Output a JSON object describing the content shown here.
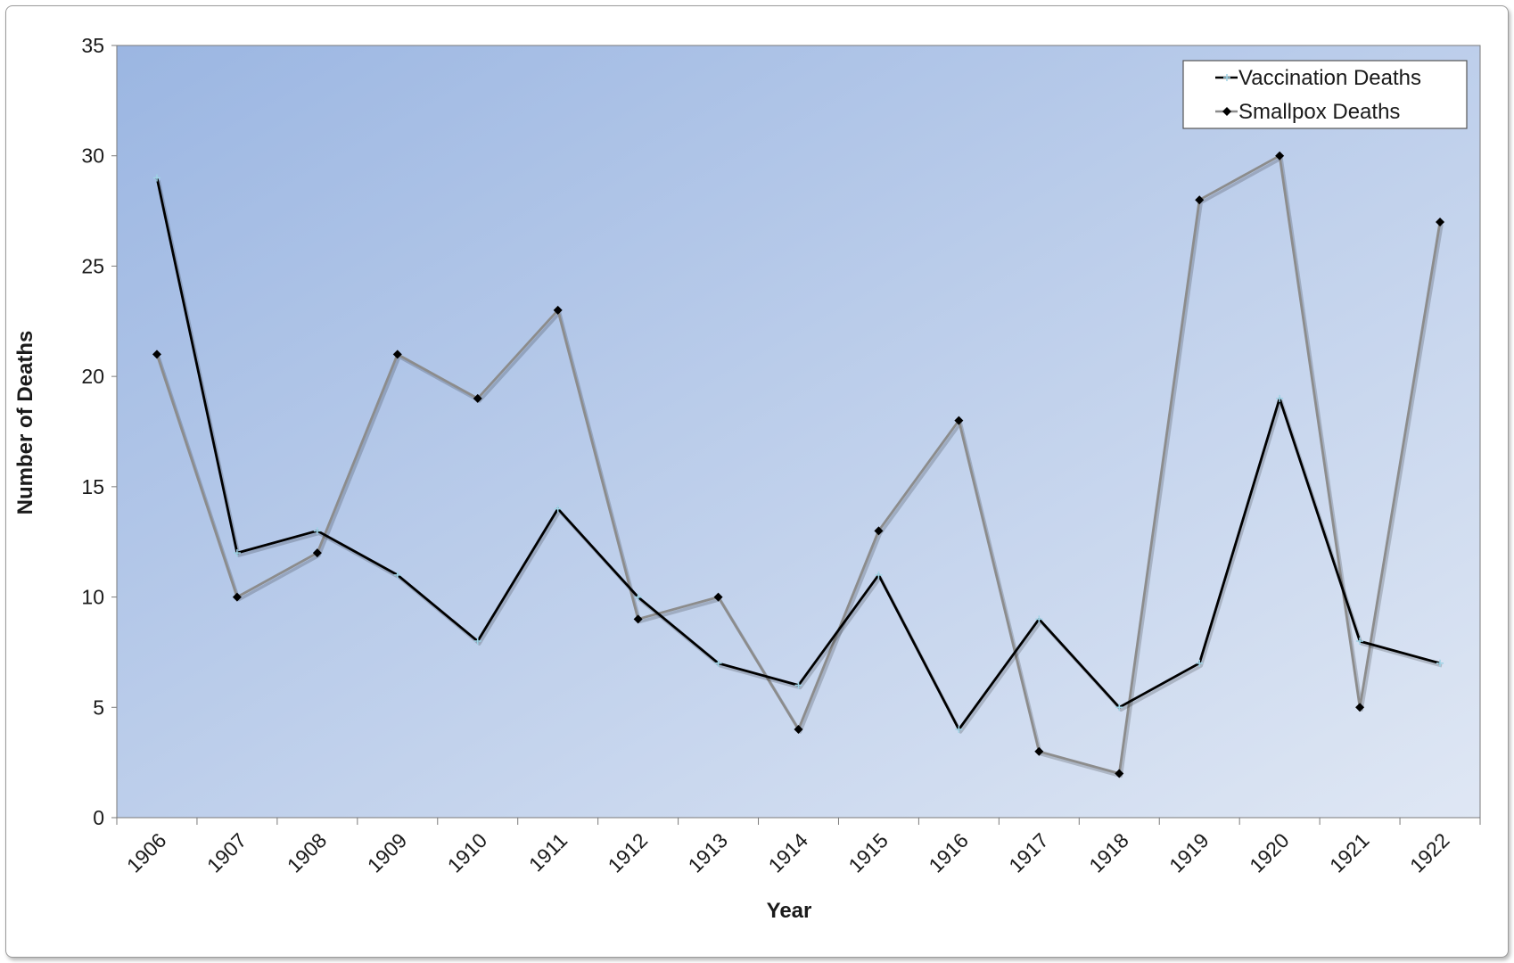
{
  "chart_data": {
    "type": "line",
    "title": "",
    "xlabel": "Year",
    "ylabel": "Number of Deaths",
    "categories": [
      "1906",
      "1907",
      "1908",
      "1909",
      "1910",
      "1911",
      "1912",
      "1913",
      "1914",
      "1915",
      "1916",
      "1917",
      "1918",
      "1919",
      "1920",
      "1921",
      "1922"
    ],
    "ylim": [
      0,
      35
    ],
    "yticks": [
      "0",
      "5",
      "10",
      "15",
      "20",
      "25",
      "30",
      "35"
    ],
    "grid": false,
    "legend_position": "top-right",
    "series": [
      {
        "name": "Vaccination Deaths",
        "values": [
          29,
          12,
          13,
          11,
          8,
          14,
          10,
          7,
          6,
          11,
          4,
          9,
          5,
          7,
          19,
          8,
          7
        ],
        "line_color": "#000000",
        "marker_color": "#9fd3e6",
        "marker": "cross"
      },
      {
        "name": "Smallpox Deaths",
        "values": [
          21,
          10,
          12,
          21,
          19,
          23,
          9,
          10,
          4,
          13,
          18,
          3,
          2,
          28,
          30,
          5,
          27
        ],
        "line_color": "#8c8c8c",
        "marker_color": "#000000",
        "marker": "diamond"
      }
    ],
    "colors": {
      "plot_gradient_start": "#9bb6e2",
      "plot_gradient_end": "#dfe7f4",
      "axis": "#7a7a7a"
    }
  }
}
